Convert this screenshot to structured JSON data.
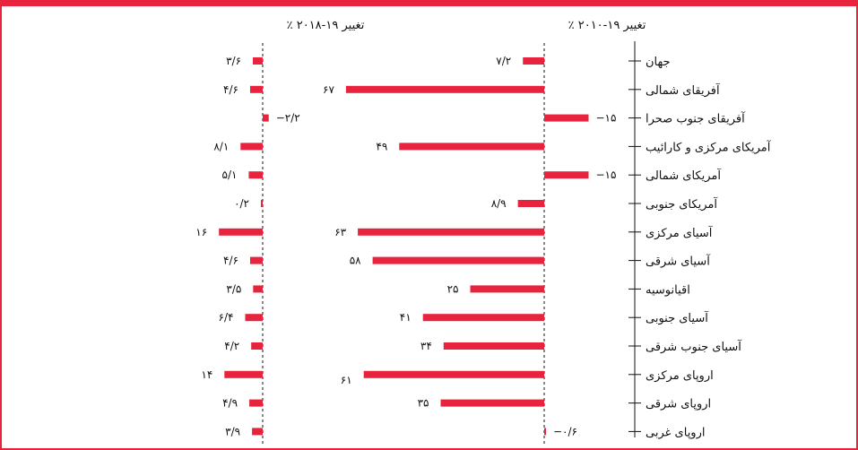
{
  "chart_data": [
    {
      "type": "bar",
      "orientation": "horizontal",
      "header": "٪ تغییر ۱۹-۲۰۱۰",
      "categories": [
        "جهان",
        "آفریقای شمالی",
        "آفریقای جنوب صحرا",
        "آمریکای مرکزی و کارائیب",
        "آمریکای شمالی",
        "آمریکای جنوبی",
        "آسیای مرکزی",
        "آسیای شرقی",
        "اقیانوسیه",
        "آسیای جنوبی",
        "آسیای جنوب شرقی",
        "اروپای مرکزی",
        "اروپای شرقی",
        "اروپای غربی"
      ],
      "values": [
        7.2,
        67,
        -15,
        49,
        -15,
        8.9,
        63,
        58,
        25,
        41,
        34,
        61,
        35,
        -0.6
      ],
      "labels": [
        "۷/۲",
        "۶۷",
        "−۱۵",
        "۴۹",
        "−۱۵",
        "۸/۹",
        "۶۳",
        "۵۸",
        "۲۵",
        "۴۱",
        "۳۴",
        "۶۱",
        "۳۵",
        "−۰/۶"
      ],
      "color": "#e8233d"
    },
    {
      "type": "bar",
      "orientation": "horizontal",
      "header": "٪ تغییر ۱۹-۲۰۱۸",
      "categories": [
        "جهان",
        "آفریقای شمالی",
        "آفریقای جنوب صحرا",
        "آمریکای مرکزی و کارائیب",
        "آمریکای شمالی",
        "آمریکای جنوبی",
        "آسیای مرکزی",
        "آسیای شرقی",
        "اقیانوسیه",
        "آسیای جنوبی",
        "آسیای جنوب شرقی",
        "اروپای مرکزی",
        "اروپای شرقی",
        "اروپای غربی"
      ],
      "values": [
        3.6,
        4.6,
        -2.2,
        8.1,
        5.1,
        0.2,
        16,
        4.6,
        3.5,
        6.4,
        4.2,
        14,
        4.9,
        3.9
      ],
      "labels": [
        "۳/۶",
        "۴/۶",
        "−۲/۲",
        "۸/۱",
        "۵/۱",
        "۰/۲",
        "۱۶",
        "۴/۶",
        "۳/۵",
        "۶/۴",
        "۴/۲",
        "۱۴",
        "۴/۹",
        "۳/۹"
      ],
      "color": "#e8233d"
    }
  ]
}
